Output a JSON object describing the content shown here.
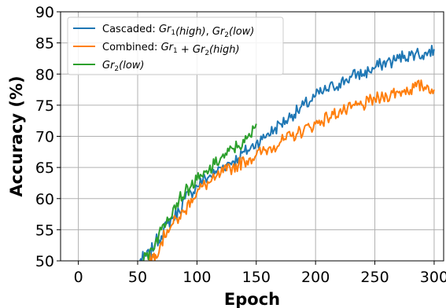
{
  "chart_data": {
    "type": "line",
    "xlabel": "Epoch",
    "ylabel": "Accuracy (%)",
    "xlim": [
      -15,
      308
    ],
    "ylim": [
      50,
      90
    ],
    "xticks": [
      0,
      50,
      100,
      150,
      200,
      250,
      300
    ],
    "yticks": [
      50,
      55,
      60,
      65,
      70,
      75,
      80,
      85,
      90
    ],
    "grid": true,
    "legend_position": "top-left",
    "series": [
      {
        "name": "Cascaded: Gr1(high), Gr2(low)",
        "legend": {
          "prefix": "Cascaded: ",
          "a_base": "Gr",
          "a_sub": "1",
          "a_arg": "(high)",
          "sep": ", ",
          "b_base": "Gr",
          "b_sub": "2",
          "b_arg": "(low)"
        },
        "color": "#1f77b4",
        "x": [
          52,
          55,
          60,
          65,
          70,
          75,
          80,
          85,
          90,
          95,
          100,
          105,
          110,
          115,
          120,
          125,
          130,
          135,
          140,
          145,
          150,
          155,
          160,
          165,
          170,
          175,
          180,
          185,
          190,
          195,
          200,
          205,
          210,
          215,
          220,
          225,
          230,
          235,
          240,
          245,
          250,
          255,
          260,
          265,
          270,
          275,
          280,
          285,
          290,
          295,
          300
        ],
        "y": [
          50,
          50.5,
          51,
          53,
          54,
          56,
          57,
          58,
          60,
          61,
          62,
          63,
          63.5,
          64,
          65,
          65.5,
          66,
          66.5,
          67.5,
          68,
          69,
          69.5,
          70.5,
          71,
          72,
          72.5,
          73.5,
          74,
          75,
          75.5,
          76.5,
          77,
          77.5,
          78,
          78.5,
          79,
          79.5,
          80,
          80,
          80.5,
          81,
          81.5,
          82,
          82,
          82.5,
          83,
          83,
          83.5,
          83,
          83.5,
          84
        ]
      },
      {
        "name": "Combined: Gr1 + Gr2(high)",
        "legend": {
          "prefix": "Combined: ",
          "a_base": "Gr",
          "a_sub": "1",
          "a_arg": "",
          "sep": " + ",
          "b_base": "Gr",
          "b_sub": "2",
          "b_arg": "(high)"
        },
        "color": "#ff7f0e",
        "x": [
          60,
          62,
          65,
          70,
          75,
          80,
          85,
          90,
          95,
          100,
          105,
          110,
          115,
          120,
          125,
          130,
          135,
          140,
          145,
          150,
          155,
          160,
          165,
          170,
          175,
          180,
          185,
          190,
          195,
          200,
          205,
          210,
          215,
          220,
          225,
          230,
          235,
          240,
          245,
          250,
          255,
          260,
          265,
          270,
          275,
          280,
          285,
          290,
          295,
          300
        ],
        "y": [
          50,
          50.5,
          51,
          53,
          55,
          56,
          57,
          58,
          60,
          61,
          62,
          62.5,
          63,
          64,
          64.5,
          65,
          65.5,
          66,
          66.5,
          67,
          67.5,
          68,
          68.5,
          69,
          69.5,
          70,
          70.5,
          71,
          71.5,
          72,
          72.5,
          73,
          73.5,
          74,
          74,
          74.5,
          75,
          75,
          75.5,
          76,
          76,
          76.5,
          77,
          77,
          77.5,
          77.5,
          78,
          78,
          78,
          77.5
        ]
      },
      {
        "name": "Gr2(low)",
        "legend": {
          "prefix": "",
          "a_base": "",
          "a_sub": "",
          "a_arg": "",
          "sep": "",
          "b_base": "Gr",
          "b_sub": "2",
          "b_arg": "(low)"
        },
        "color": "#2ca02c",
        "x": [
          55,
          60,
          65,
          70,
          75,
          80,
          85,
          90,
          95,
          100,
          105,
          110,
          115,
          120,
          125,
          130,
          135,
          140,
          145,
          150
        ],
        "y": [
          50,
          51.5,
          53,
          55,
          57,
          58.5,
          60,
          61,
          62,
          63,
          63.5,
          64.5,
          65.5,
          66.5,
          67,
          68,
          68.5,
          69,
          70,
          72
        ]
      }
    ]
  }
}
